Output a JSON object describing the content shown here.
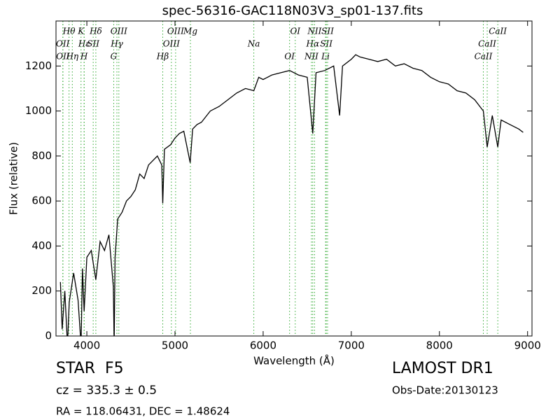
{
  "chart_data": {
    "type": "line",
    "title": "spec-56316-GAC118N03V3_sp01-137.fits",
    "xlabel": "Wavelength (Å)",
    "ylabel": "Flux (relative)",
    "color": "#000000",
    "x": [
      3700,
      3720,
      3750,
      3780,
      3800,
      3850,
      3900,
      3934,
      3950,
      3969,
      4000,
      4050,
      4102,
      4150,
      4200,
      4250,
      4300,
      4310,
      4320,
      4350,
      4400,
      4450,
      4500,
      4550,
      4600,
      4650,
      4700,
      4750,
      4800,
      4850,
      4861,
      4880,
      4950,
      5000,
      5050,
      5100,
      5172,
      5200,
      5250,
      5300,
      5400,
      5500,
      5600,
      5700,
      5800,
      5894,
      5950,
      6000,
      6100,
      6200,
      6300,
      6400,
      6500,
      6563,
      6600,
      6700,
      6800,
      6868,
      6900,
      7000,
      7050,
      7100,
      7200,
      7300,
      7400,
      7500,
      7600,
      7700,
      7800,
      7900,
      8000,
      8100,
      8200,
      8300,
      8400,
      8498,
      8542,
      8600,
      8662,
      8700,
      8800,
      8900,
      8950
    ],
    "values": [
      240,
      30,
      200,
      -40,
      150,
      280,
      160,
      -40,
      300,
      110,
      350,
      380,
      250,
      420,
      380,
      450,
      220,
      -40,
      350,
      520,
      550,
      600,
      620,
      650,
      720,
      700,
      760,
      780,
      800,
      760,
      590,
      830,
      850,
      880,
      900,
      910,
      770,
      920,
      940,
      950,
      1000,
      1020,
      1050,
      1080,
      1100,
      1090,
      1150,
      1140,
      1160,
      1170,
      1180,
      1160,
      1150,
      900,
      1170,
      1180,
      1200,
      980,
      1200,
      1230,
      1250,
      1240,
      1230,
      1220,
      1230,
      1200,
      1210,
      1190,
      1180,
      1150,
      1130,
      1120,
      1090,
      1080,
      1050,
      1000,
      840,
      980,
      840,
      960,
      940,
      920,
      905
    ],
    "xlim": [
      3650,
      9050
    ],
    "ylim": [
      0,
      1400
    ],
    "xticks": [
      4000,
      5000,
      6000,
      7000,
      8000,
      9000
    ],
    "yticks": [
      0,
      200,
      400,
      600,
      800,
      1000,
      1200
    ],
    "line_color": "#33aa33",
    "lines": [
      {
        "label": "Hθ",
        "wavelength": 3798
      },
      {
        "label": "OII",
        "wavelength": 3727
      },
      {
        "label": "OII",
        "wavelength": 3729
      },
      {
        "label": "K",
        "wavelength": 3934
      },
      {
        "label": "Hε",
        "wavelength": 3970
      },
      {
        "label": "Hη",
        "wavelength": 3835
      },
      {
        "label": "Hδ",
        "wavelength": 4102
      },
      {
        "label": "SII",
        "wavelength": 4072
      },
      {
        "label": "H",
        "wavelength": 3969
      },
      {
        "label": "OIII",
        "wavelength": 4363
      },
      {
        "label": "Hγ",
        "wavelength": 4341
      },
      {
        "label": "G",
        "wavelength": 4305
      },
      {
        "label": "OIII",
        "wavelength": 5007
      },
      {
        "label": "OIII",
        "wavelength": 4959
      },
      {
        "label": "Hβ",
        "wavelength": 4861
      },
      {
        "label": "Mg",
        "wavelength": 5175
      },
      {
        "label": "Na",
        "wavelength": 5894
      },
      {
        "label": "OI",
        "wavelength": 6300
      },
      {
        "label": "OI",
        "wavelength": 6364
      },
      {
        "label": "Hα",
        "wavelength": 6563
      },
      {
        "label": "NII",
        "wavelength": 6548
      },
      {
        "label": "NII",
        "wavelength": 6583
      },
      {
        "label": "SII",
        "wavelength": 6716
      },
      {
        "label": "Li",
        "wavelength": 6708
      },
      {
        "label": "SII",
        "wavelength": 6731
      },
      {
        "label": "CaII",
        "wavelength": 8542
      },
      {
        "label": "CaII",
        "wavelength": 8498
      },
      {
        "label": "CaII",
        "wavelength": 8662
      }
    ]
  },
  "footer": {
    "class": "STAR",
    "subclass": "F5",
    "cz": "cz = 335.3 ± 0.5",
    "coords": "RA = 118.06431, DEC = 1.48624",
    "survey": "LAMOST DR1",
    "obs_date": "Obs-Date:20130123"
  }
}
